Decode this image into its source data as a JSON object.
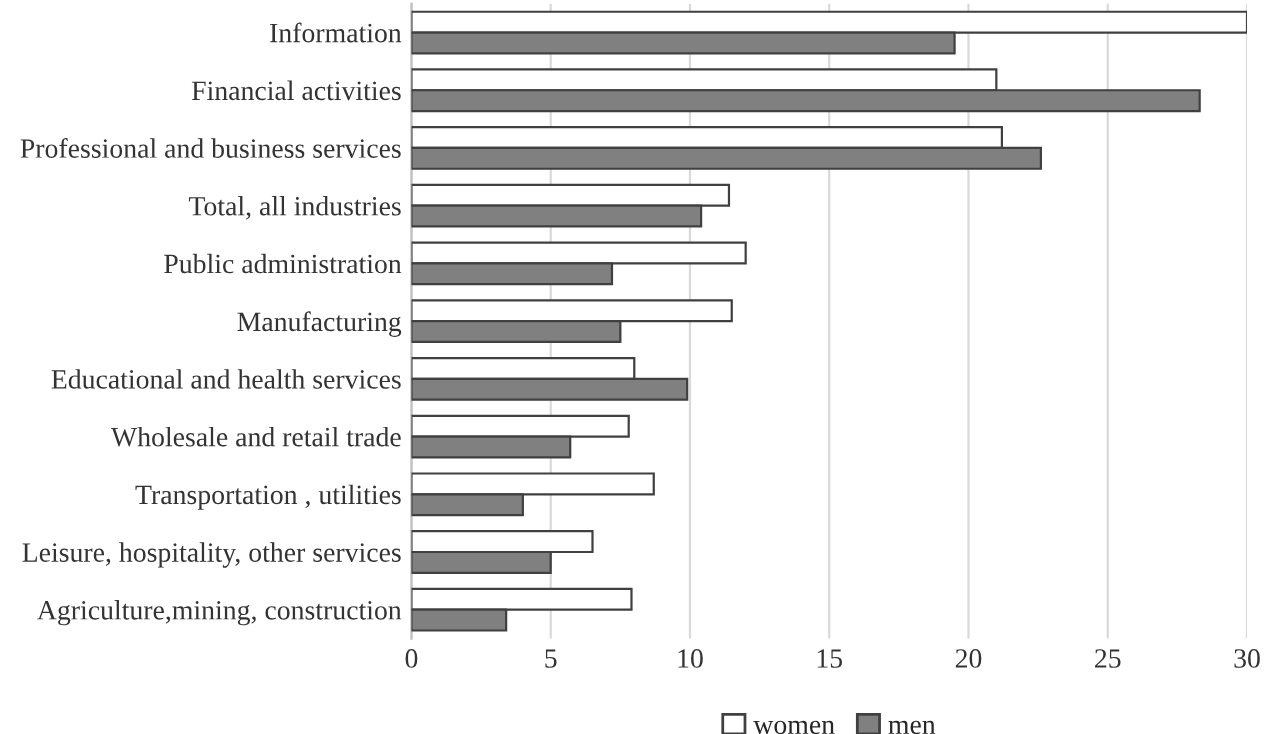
{
  "chart_data": {
    "type": "bar",
    "orientation": "horizontal",
    "categories": [
      "Information",
      "Financial activities",
      "Professional and business services",
      "Total, all industries",
      "Public administration",
      "Manufacturing",
      "Educational and health services",
      "Wholesale and retail trade",
      "Transportation , utilities",
      "Leisure, hospitality, other services",
      "Agriculture,mining, construction"
    ],
    "series": [
      {
        "name": "women",
        "color": "#ffffff",
        "values": [
          30,
          21.0,
          21.2,
          11.4,
          12.0,
          11.5,
          8.0,
          7.8,
          8.7,
          6.5,
          7.9
        ]
      },
      {
        "name": "men",
        "color": "#808080",
        "values": [
          19.5,
          28.3,
          22.6,
          10.4,
          7.2,
          7.5,
          9.9,
          5.7,
          4.0,
          5.0,
          3.4
        ]
      }
    ],
    "xlim": [
      0,
      30
    ],
    "xticks": [
      0,
      5,
      10,
      15,
      20,
      25,
      30
    ],
    "grid": "x",
    "legend": "bottom"
  }
}
